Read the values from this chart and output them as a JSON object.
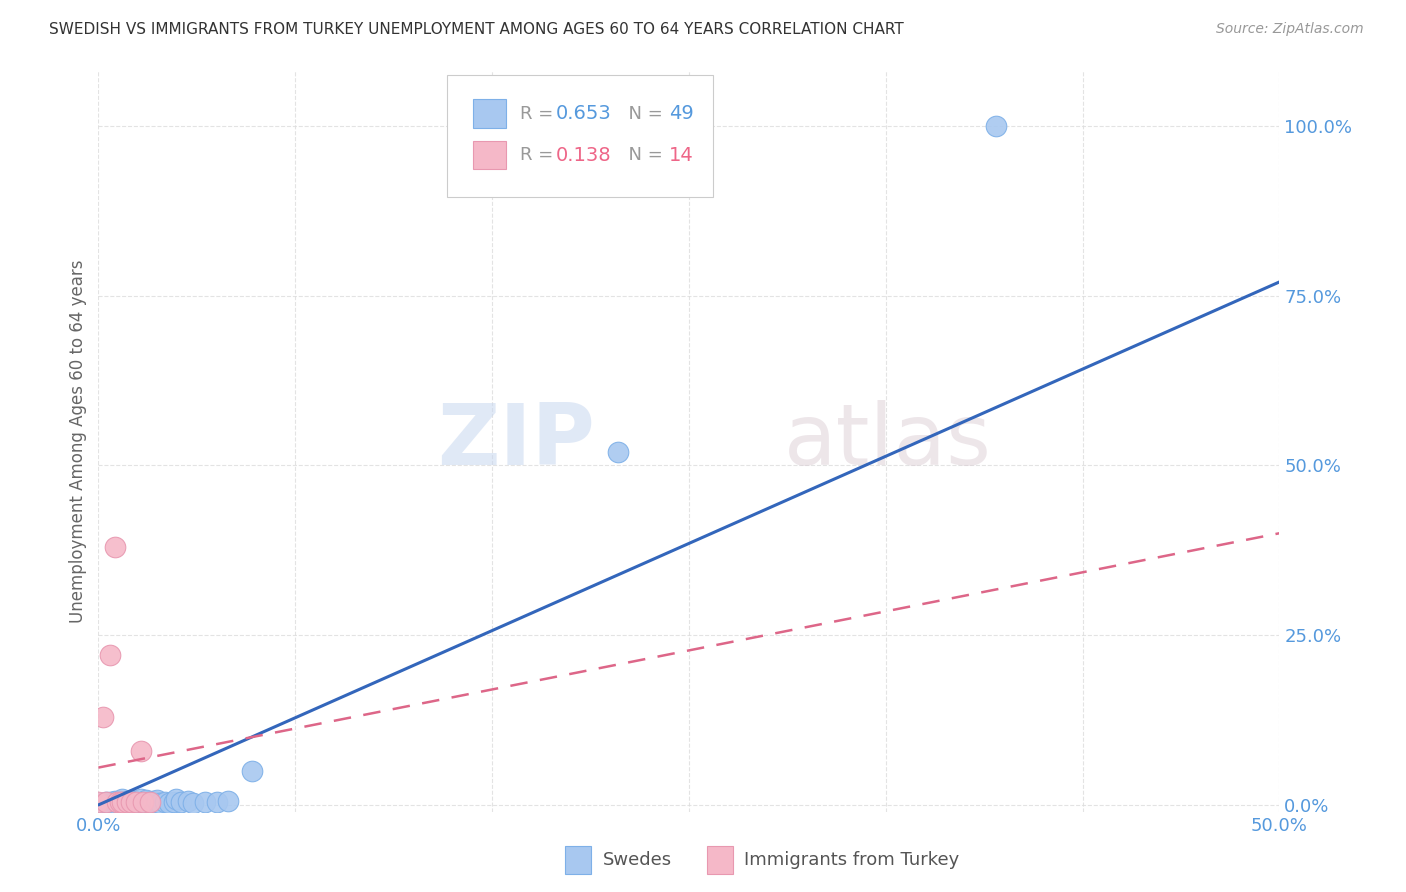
{
  "title": "SWEDISH VS IMMIGRANTS FROM TURKEY UNEMPLOYMENT AMONG AGES 60 TO 64 YEARS CORRELATION CHART",
  "source": "Source: ZipAtlas.com",
  "ylabel": "Unemployment Among Ages 60 to 64 years",
  "xlim": [
    0.0,
    0.5
  ],
  "ylim": [
    -0.01,
    1.08
  ],
  "yticks": [
    0.0,
    0.25,
    0.5,
    0.75,
    1.0
  ],
  "ytick_labels": [
    "0.0%",
    "25.0%",
    "50.0%",
    "75.0%",
    "100.0%"
  ],
  "xtick_positions": [
    0.0,
    0.0833,
    0.1667,
    0.25,
    0.3333,
    0.4167,
    0.5
  ],
  "xtick_labels": [
    "0.0%",
    "",
    "",
    "",
    "",
    "",
    "50.0%"
  ],
  "legend_r_swedes": "0.653",
  "legend_n_swedes": "49",
  "legend_r_turkey": "0.138",
  "legend_n_turkey": "14",
  "legend_label_swedes": "Swedes",
  "legend_label_turkey": "Immigrants from Turkey",
  "watermark_zip": "ZIP",
  "watermark_atlas": "atlas",
  "swedes_color": "#A8C8F0",
  "swedes_edge": "#7EB0E8",
  "turkey_color": "#F5B8C8",
  "turkey_edge": "#E898B0",
  "line_swedes_color": "#3366BB",
  "line_turkey_color": "#DD6688",
  "swedes_x": [
    0.0,
    0.002,
    0.003,
    0.004,
    0.005,
    0.005,
    0.006,
    0.007,
    0.007,
    0.008,
    0.009,
    0.009,
    0.01,
    0.01,
    0.01,
    0.011,
    0.012,
    0.012,
    0.013,
    0.014,
    0.014,
    0.015,
    0.015,
    0.016,
    0.017,
    0.018,
    0.018,
    0.019,
    0.02,
    0.02,
    0.021,
    0.022,
    0.023,
    0.025,
    0.025,
    0.026,
    0.028,
    0.03,
    0.032,
    0.033,
    0.035,
    0.038,
    0.04,
    0.045,
    0.05,
    0.055,
    0.065,
    0.22,
    0.38
  ],
  "swedes_y": [
    0.003,
    0.003,
    0.005,
    0.003,
    0.003,
    0.005,
    0.004,
    0.003,
    0.006,
    0.004,
    0.003,
    0.006,
    0.003,
    0.005,
    0.008,
    0.004,
    0.003,
    0.006,
    0.004,
    0.003,
    0.007,
    0.003,
    0.006,
    0.004,
    0.003,
    0.005,
    0.008,
    0.004,
    0.003,
    0.007,
    0.004,
    0.003,
    0.006,
    0.004,
    0.007,
    0.003,
    0.005,
    0.003,
    0.005,
    0.008,
    0.004,
    0.006,
    0.003,
    0.005,
    0.004,
    0.006,
    0.05,
    0.52,
    1.0
  ],
  "swedes_line_x": [
    0.0,
    0.5
  ],
  "swedes_line_y": [
    0.0,
    0.77
  ],
  "turkey_x": [
    0.0,
    0.002,
    0.003,
    0.005,
    0.007,
    0.008,
    0.009,
    0.01,
    0.012,
    0.014,
    0.016,
    0.018,
    0.019,
    0.022
  ],
  "turkey_y": [
    0.005,
    0.13,
    0.005,
    0.22,
    0.38,
    0.005,
    0.005,
    0.005,
    0.005,
    0.005,
    0.005,
    0.08,
    0.005,
    0.005
  ],
  "turkey_line_x": [
    0.0,
    0.5
  ],
  "turkey_line_y": [
    0.055,
    0.4
  ],
  "background_color": "#FFFFFF",
  "grid_color": "#DDDDDD",
  "title_color": "#333333",
  "axis_label_color": "#666666",
  "tick_color_blue": "#5599DD",
  "r_color_blue": "#5599DD",
  "r_color_pink": "#EE6688",
  "legend_gray": "#999999"
}
